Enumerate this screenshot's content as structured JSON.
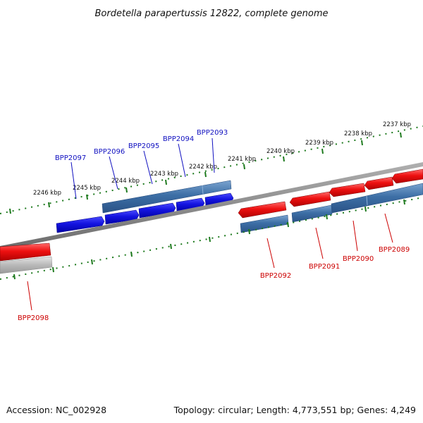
{
  "title": "Bordetella parapertussis 12822, complete genome",
  "footer": {
    "accession": "Accession: NC_002928",
    "summary": "Topology: circular; Length: 4,773,551 bp; Genes: 4,249"
  },
  "colors": {
    "background": "#ffffff",
    "tick": "#1e7a1e",
    "backbone": "#8a8a8a",
    "forward_label": "#1010c0",
    "reverse_label": "#cc0000",
    "cds_forward": "#1414e0",
    "cds_reverse": "#ee1111",
    "gene_forward": "#3d6fa6",
    "gene_reverse": "#3d6fa6",
    "gene_other": "#b8b8b8"
  },
  "kbp_labels": [
    "2237 kbp",
    "2238 kbp",
    "2239 kbp",
    "2240 kbp",
    "2241 kbp",
    "2242 kbp",
    "2243 kbp",
    "2244 kbp",
    "2245 kbp",
    "2246 kbp"
  ],
  "forward_genes": [
    "BPP2093",
    "BPP2094",
    "BPP2095",
    "BPP2096",
    "BPP2097"
  ],
  "reverse_genes": [
    "BPP2089",
    "BPP2090",
    "BPP2091",
    "BPP2092",
    "BPP2098"
  ]
}
